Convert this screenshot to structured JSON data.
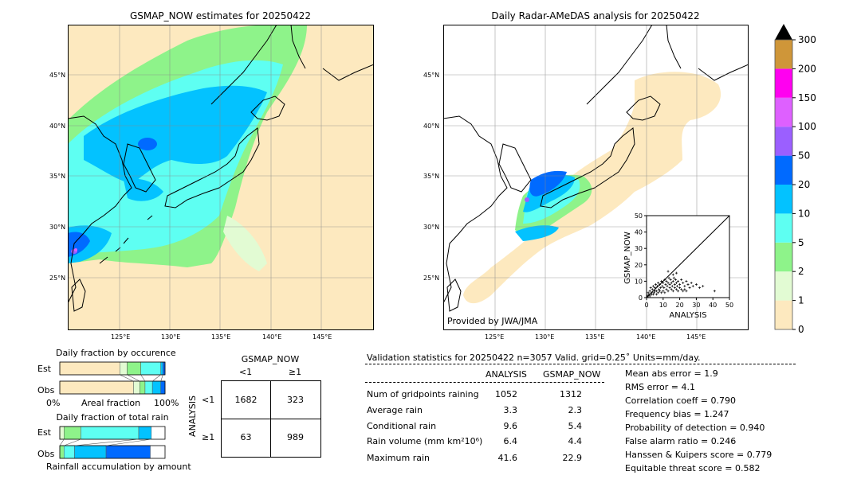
{
  "left_map": {
    "title": "GSMAP_NOW estimates for 20250422",
    "lat_labels": [
      "45°N",
      "40°N",
      "35°N",
      "30°N",
      "25°N"
    ],
    "lon_labels": [
      "125°E",
      "130°E",
      "135°E",
      "140°E",
      "145°E"
    ]
  },
  "right_map": {
    "title": "Daily Radar-AMeDAS analysis for 20250422",
    "lat_labels": [
      "45°N",
      "40°N",
      "35°N",
      "30°N",
      "25°N"
    ],
    "lon_labels": [
      "125°E",
      "130°E",
      "135°E",
      "140°E",
      "145°E"
    ],
    "credit": "Provided by JWA/JMA"
  },
  "colorbar": {
    "ticks": [
      "0",
      "1",
      "2",
      "5",
      "10",
      "20",
      "50",
      "100",
      "150",
      "200",
      "300"
    ],
    "colors": [
      "#fde9bf",
      "#e2fbd3",
      "#8ef38a",
      "#5efff2",
      "#03c2ff",
      "#006aff",
      "#9b5fff",
      "#de60ff",
      "#ff00f0",
      "#cf9639"
    ],
    "extend_color": "#000000"
  },
  "chart_data": [
    {
      "type": "scatter",
      "title": "",
      "xlabel": "ANALYSIS",
      "ylabel": "GSMAP_NOW",
      "xlim": [
        0,
        50
      ],
      "ylim": [
        0,
        50
      ],
      "xticks": [
        "0",
        "10",
        "20",
        "30",
        "40",
        "50"
      ],
      "yticks": [
        "0",
        "10",
        "20",
        "30",
        "40",
        "50"
      ],
      "reference_line": "y = x",
      "points": [
        [
          0.5,
          1
        ],
        [
          1,
          3
        ],
        [
          1.5,
          2
        ],
        [
          2,
          4
        ],
        [
          2.5,
          6
        ],
        [
          3,
          2
        ],
        [
          3.5,
          5
        ],
        [
          4,
          7
        ],
        [
          4.5,
          3
        ],
        [
          5,
          6
        ],
        [
          5.5,
          8
        ],
        [
          6,
          4
        ],
        [
          6.5,
          7
        ],
        [
          7,
          9
        ],
        [
          7.5,
          5
        ],
        [
          8,
          8
        ],
        [
          8.5,
          6
        ],
        [
          9,
          10
        ],
        [
          9.5,
          7
        ],
        [
          10,
          9
        ],
        [
          10.5,
          6
        ],
        [
          11,
          11
        ],
        [
          11.5,
          8
        ],
        [
          12,
          10
        ],
        [
          12.5,
          7
        ],
        [
          13,
          9
        ],
        [
          13.5,
          12
        ],
        [
          14,
          8
        ],
        [
          14.5,
          11
        ],
        [
          15,
          9
        ],
        [
          15.5,
          7
        ],
        [
          16,
          10
        ],
        [
          16.5,
          12
        ],
        [
          17,
          8
        ],
        [
          17.5,
          11
        ],
        [
          18,
          9
        ],
        [
          18.5,
          7
        ],
        [
          19,
          10
        ],
        [
          20,
          8
        ],
        [
          21,
          11
        ],
        [
          22,
          9
        ],
        [
          23,
          7
        ],
        [
          24,
          10
        ],
        [
          25,
          8
        ],
        [
          26,
          6
        ],
        [
          27,
          9
        ],
        [
          28,
          7
        ],
        [
          30,
          8
        ],
        [
          32,
          6
        ],
        [
          34,
          7
        ],
        [
          41,
          4
        ],
        [
          1,
          1
        ],
        [
          2,
          1
        ],
        [
          3,
          3
        ],
        [
          4,
          2
        ],
        [
          5,
          4
        ],
        [
          6,
          2
        ],
        [
          7,
          3
        ],
        [
          8,
          4
        ],
        [
          9,
          3
        ],
        [
          10,
          4
        ],
        [
          11,
          3
        ],
        [
          12,
          5
        ],
        [
          13,
          4
        ],
        [
          14,
          6
        ],
        [
          15,
          5
        ],
        [
          16,
          4
        ],
        [
          17,
          6
        ],
        [
          18,
          5
        ],
        [
          19,
          4
        ],
        [
          20,
          6
        ],
        [
          21,
          5
        ],
        [
          22,
          4
        ],
        [
          23,
          5
        ],
        [
          24,
          4
        ],
        [
          13,
          16
        ],
        [
          16,
          14
        ],
        [
          18,
          15
        ]
      ]
    },
    {
      "type": "bar",
      "title": "Daily fraction by occurence",
      "orientation": "horizontal-stacked",
      "categories": [
        "Est",
        "Obs"
      ],
      "xticks": [
        "0%",
        "100%"
      ],
      "xlabel": "Areal fraction",
      "series": [
        {
          "color": "#fde9bf",
          "values": [
            0.57,
            0.7
          ]
        },
        {
          "color": "#e2fbd3",
          "values": [
            0.07,
            0.06
          ]
        },
        {
          "color": "#8ef38a",
          "values": [
            0.13,
            0.05
          ]
        },
        {
          "color": "#5efff2",
          "values": [
            0.19,
            0.07
          ]
        },
        {
          "color": "#03c2ff",
          "values": [
            0.02,
            0.08
          ]
        },
        {
          "color": "#006aff",
          "values": [
            0.02,
            0.04
          ]
        }
      ]
    },
    {
      "type": "bar",
      "title": "Daily fraction of total rain",
      "orientation": "horizontal-stacked",
      "categories": [
        "Est",
        "Obs"
      ],
      "xlabel": "Rainfall accumulation by amount",
      "series": [
        {
          "color": "#e2fbd3",
          "values": [
            0.04,
            0.0
          ]
        },
        {
          "color": "#8ef38a",
          "values": [
            0.16,
            0.04
          ]
        },
        {
          "color": "#5efff2",
          "values": [
            0.55,
            0.1
          ]
        },
        {
          "color": "#03c2ff",
          "values": [
            0.12,
            0.3
          ]
        },
        {
          "color": "#006aff",
          "values": [
            0.0,
            0.42
          ]
        }
      ]
    },
    {
      "type": "table",
      "title": "GSMAP_NOW",
      "col_labels": [
        "<1",
        "≥1"
      ],
      "row_title": "ANALYSIS",
      "row_labels": [
        "<1",
        "≥1"
      ],
      "cells": [
        [
          "1682",
          "323"
        ],
        [
          "63",
          "989"
        ]
      ]
    }
  ],
  "validation": {
    "header": "Validation statistics for 20250422  n=3057 Valid. grid=0.25˚ Units=mm/day.",
    "col_analysis": "ANALYSIS",
    "col_gsmap": "GSMAP_NOW",
    "rows": [
      {
        "label": "Num of gridpoints raining",
        "analysis": "1052",
        "gsmap": "1312"
      },
      {
        "label": "Average rain",
        "analysis": "3.3",
        "gsmap": "2.3"
      },
      {
        "label": "Conditional rain",
        "analysis": "9.6",
        "gsmap": "5.4"
      },
      {
        "label": "Rain volume (mm km²10⁶)",
        "analysis": "6.4",
        "gsmap": "4.4"
      },
      {
        "label": "Maximum rain",
        "analysis": "41.6",
        "gsmap": "22.9"
      }
    ],
    "scores": [
      "Mean abs error =    1.9",
      "RMS error =    4.1",
      "Correlation coeff =  0.790",
      "Frequency bias =  1.247",
      "Probability of detection =  0.940",
      "False alarm ratio =  0.246",
      "Hanssen & Kuipers score =  0.779",
      "Equitable threat score =  0.582"
    ]
  }
}
